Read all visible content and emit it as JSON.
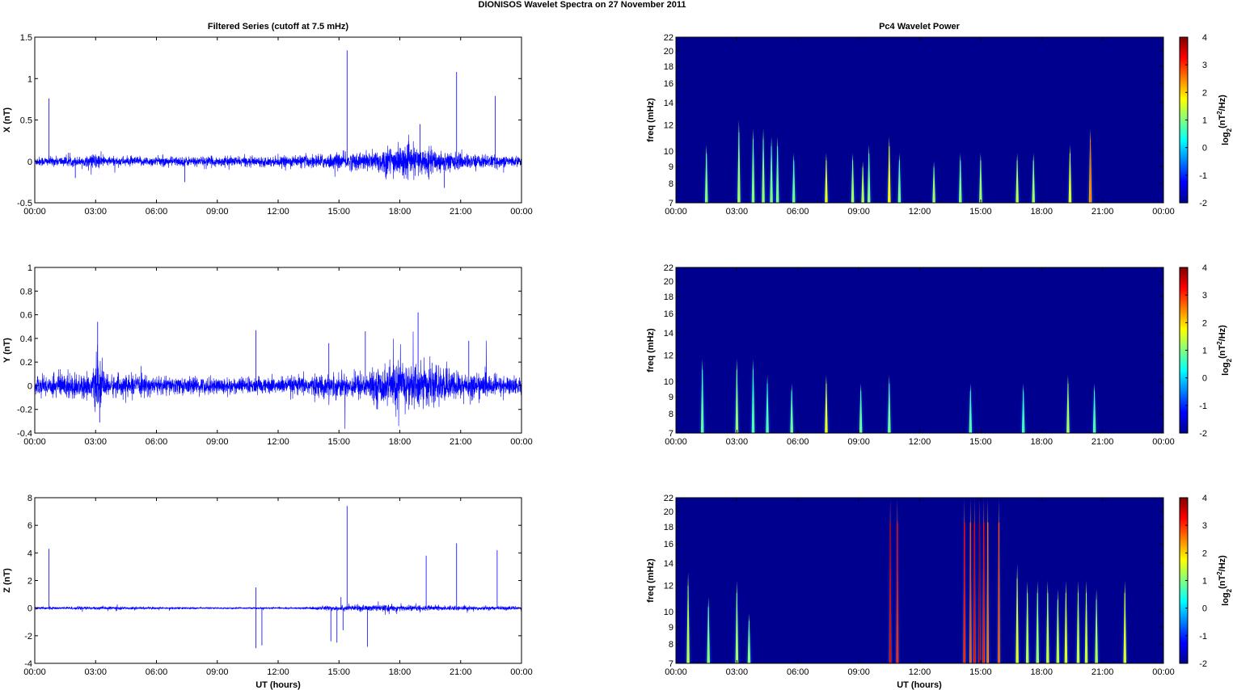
{
  "figure": {
    "title": "DIONISOS Wavelet Spectra on 27 November  2011",
    "left_title": "Filtered Series (cutoff at 7.5 mHz)",
    "right_title": "Pc4 Wavelet Power",
    "xlabel": "UT (hours)",
    "spectrum_ylabel": "freq (mHz)",
    "colorbar_label": "log2(nT2/Hz)"
  },
  "colors": {
    "series": "#0000ff",
    "background_spectrum": "#00008f"
  },
  "chart_data": [
    {
      "type": "line",
      "name": "X filtered series",
      "ylabel": "X (nT)",
      "xticks": [
        "00:00",
        "03:00",
        "06:00",
        "09:00",
        "12:00",
        "15:00",
        "18:00",
        "21:00",
        "00:00"
      ],
      "xlim": [
        0,
        24
      ],
      "ylim": [
        -0.5,
        1.5
      ],
      "yticks": [
        "-0.5",
        "0",
        "0.5",
        "1",
        "1.5"
      ],
      "noise_profile": [
        [
          0,
          0.05
        ],
        [
          2.5,
          0.05
        ],
        [
          3,
          0.09
        ],
        [
          3.5,
          0.05
        ],
        [
          12,
          0.05
        ],
        [
          16.5,
          0.1
        ],
        [
          17.5,
          0.16
        ],
        [
          19,
          0.15
        ],
        [
          21,
          0.08
        ],
        [
          24,
          0.05
        ]
      ],
      "spikes": [
        [
          0.7,
          0.76
        ],
        [
          15.4,
          1.34
        ],
        [
          19.0,
          0.45
        ],
        [
          20.8,
          1.08
        ],
        [
          22.7,
          0.79
        ],
        [
          2.0,
          -0.2
        ],
        [
          7.4,
          -0.25
        ],
        [
          20.2,
          -0.32
        ]
      ]
    },
    {
      "type": "line",
      "name": "Y filtered series",
      "ylabel": "Y (nT)",
      "xticks": [
        "00:00",
        "03:00",
        "06:00",
        "09:00",
        "12:00",
        "15:00",
        "18:00",
        "21:00",
        "00:00"
      ],
      "xlim": [
        0,
        24
      ],
      "ylim": [
        -0.4,
        1
      ],
      "yticks": [
        "-0.4",
        "-0.2",
        "0",
        "0.2",
        "0.4",
        "0.6",
        "0.8",
        "1"
      ],
      "noise_profile": [
        [
          0,
          0.06
        ],
        [
          1.5,
          0.1
        ],
        [
          2.8,
          0.08
        ],
        [
          3.1,
          0.2
        ],
        [
          3.5,
          0.08
        ],
        [
          8,
          0.06
        ],
        [
          12,
          0.06
        ],
        [
          16.5,
          0.1
        ],
        [
          18,
          0.18
        ],
        [
          19,
          0.16
        ],
        [
          21,
          0.1
        ],
        [
          24,
          0.06
        ]
      ],
      "spikes": [
        [
          3.1,
          0.54
        ],
        [
          10.9,
          0.47
        ],
        [
          14.5,
          0.36
        ],
        [
          16.3,
          0.46
        ],
        [
          18.9,
          0.62
        ],
        [
          21.4,
          0.38
        ],
        [
          3.2,
          -0.31
        ],
        [
          16.9,
          -0.2
        ]
      ]
    },
    {
      "type": "line",
      "name": "Z filtered series",
      "ylabel": "Z (nT)",
      "xlabel": "UT (hours)",
      "xticks": [
        "00:00",
        "03:00",
        "06:00",
        "09:00",
        "12:00",
        "15:00",
        "18:00",
        "21:00",
        "00:00"
      ],
      "xlim": [
        0,
        24
      ],
      "ylim": [
        -4,
        8
      ],
      "yticks": [
        "-4",
        "-2",
        "0",
        "2",
        "4",
        "6",
        "8"
      ],
      "noise_profile": [
        [
          0,
          0.08
        ],
        [
          3,
          0.1
        ],
        [
          5,
          0.08
        ],
        [
          9,
          0.05
        ],
        [
          13,
          0.05
        ],
        [
          14.5,
          0.15
        ],
        [
          16.5,
          0.2
        ],
        [
          18,
          0.2
        ],
        [
          20,
          0.15
        ],
        [
          24,
          0.1
        ]
      ],
      "spikes": [
        [
          0.7,
          4.3
        ],
        [
          15.4,
          7.4
        ],
        [
          19.3,
          3.8
        ],
        [
          20.8,
          4.7
        ],
        [
          22.8,
          4.2
        ],
        [
          10.9,
          1.5
        ],
        [
          10.9,
          -2.9
        ],
        [
          11.2,
          -2.7
        ],
        [
          14.6,
          -2.4
        ],
        [
          14.9,
          -2.5
        ],
        [
          15.2,
          -1.6
        ],
        [
          16.4,
          -2.8
        ],
        [
          15.1,
          0.8
        ]
      ]
    },
    {
      "type": "heatmap",
      "name": "X wavelet power",
      "ylabel": "freq (mHz)",
      "yscale": "log",
      "ylim": [
        7,
        22
      ],
      "yticks": [
        7,
        8,
        9,
        10,
        12,
        14,
        16,
        18,
        20,
        22
      ],
      "xlim": [
        0,
        24
      ],
      "xticks": [
        "00:00",
        "03:00",
        "06:00",
        "09:00",
        "12:00",
        "15:00",
        "18:00",
        "21:00",
        "00:00"
      ],
      "clim": [
        -2,
        4
      ],
      "cticks": [
        "-2",
        "-1",
        "0",
        "1",
        "2",
        "3",
        "4"
      ],
      "events": [
        [
          1.5,
          0.8,
          0.35
        ],
        [
          3.1,
          1.0,
          0.5
        ],
        [
          3.8,
          0.8,
          0.45
        ],
        [
          4.3,
          0.9,
          0.45
        ],
        [
          4.7,
          0.7,
          0.4
        ],
        [
          5.0,
          0.7,
          0.4
        ],
        [
          5.8,
          0.6,
          0.3
        ],
        [
          7.4,
          1.6,
          0.3
        ],
        [
          8.7,
          1.0,
          0.3
        ],
        [
          9.2,
          1.2,
          0.25
        ],
        [
          9.5,
          0.8,
          0.35
        ],
        [
          10.5,
          1.8,
          0.4
        ],
        [
          11.0,
          0.7,
          0.3
        ],
        [
          12.7,
          1.0,
          0.25
        ],
        [
          14.0,
          0.8,
          0.3
        ],
        [
          15.0,
          1.0,
          0.3
        ],
        [
          16.8,
          1.2,
          0.3
        ],
        [
          17.6,
          1.0,
          0.3
        ],
        [
          19.4,
          1.5,
          0.35
        ],
        [
          20.4,
          2.6,
          0.45
        ]
      ]
    },
    {
      "type": "heatmap",
      "name": "Y wavelet power",
      "ylabel": "freq (mHz)",
      "yscale": "log",
      "ylim": [
        7,
        22
      ],
      "yticks": [
        7,
        8,
        9,
        10,
        12,
        14,
        16,
        18,
        20,
        22
      ],
      "xlim": [
        0,
        24
      ],
      "xticks": [
        "00:00",
        "03:00",
        "06:00",
        "09:00",
        "12:00",
        "15:00",
        "18:00",
        "21:00",
        "00:00"
      ],
      "clim": [
        -2,
        4
      ],
      "cticks": [
        "-2",
        "-1",
        "0",
        "1",
        "2",
        "3",
        "4"
      ],
      "events": [
        [
          1.3,
          0.5,
          0.45
        ],
        [
          3.0,
          0.9,
          0.45
        ],
        [
          3.8,
          0.4,
          0.45
        ],
        [
          4.5,
          0.4,
          0.35
        ],
        [
          5.7,
          0.6,
          0.3
        ],
        [
          7.4,
          1.6,
          0.35
        ],
        [
          9.1,
          0.6,
          0.3
        ],
        [
          10.5,
          0.6,
          0.35
        ],
        [
          14.5,
          0.4,
          0.3
        ],
        [
          17.1,
          0.3,
          0.3
        ],
        [
          19.3,
          1.1,
          0.35
        ],
        [
          20.6,
          0.4,
          0.3
        ]
      ]
    },
    {
      "type": "heatmap",
      "name": "Z wavelet power",
      "ylabel": "freq (mHz)",
      "xlabel": "UT (hours)",
      "yscale": "log",
      "ylim": [
        7,
        22
      ],
      "yticks": [
        7,
        8,
        9,
        10,
        12,
        14,
        16,
        18,
        20,
        22
      ],
      "xlim": [
        0,
        24
      ],
      "xticks": [
        "00:00",
        "03:00",
        "06:00",
        "09:00",
        "12:00",
        "15:00",
        "18:00",
        "21:00",
        "00:00"
      ],
      "clim": [
        -2,
        4
      ],
      "cticks": [
        "-2",
        "-1",
        "0",
        "1",
        "2",
        "3",
        "4"
      ],
      "events": [
        [
          0.6,
          1.2,
          0.55
        ],
        [
          1.6,
          0.8,
          0.4
        ],
        [
          3.0,
          1.0,
          0.5
        ],
        [
          3.6,
          0.8,
          0.3
        ],
        [
          10.55,
          3.6,
          1.0
        ],
        [
          10.9,
          3.2,
          1.0
        ],
        [
          14.2,
          3.2,
          1.0
        ],
        [
          14.5,
          2.8,
          1.0
        ],
        [
          14.7,
          3.4,
          1.0
        ],
        [
          14.95,
          3.8,
          1.0
        ],
        [
          15.15,
          3.2,
          1.0
        ],
        [
          15.35,
          2.6,
          1.0
        ],
        [
          15.9,
          2.8,
          1.0
        ],
        [
          16.8,
          1.5,
          0.6
        ],
        [
          17.3,
          1.2,
          0.5
        ],
        [
          17.8,
          1.0,
          0.5
        ],
        [
          18.3,
          1.3,
          0.5
        ],
        [
          18.8,
          1.2,
          0.45
        ],
        [
          19.2,
          1.5,
          0.5
        ],
        [
          19.8,
          1.3,
          0.5
        ],
        [
          20.2,
          1.4,
          0.5
        ],
        [
          20.7,
          1.1,
          0.45
        ],
        [
          22.1,
          1.5,
          0.5
        ]
      ]
    }
  ]
}
